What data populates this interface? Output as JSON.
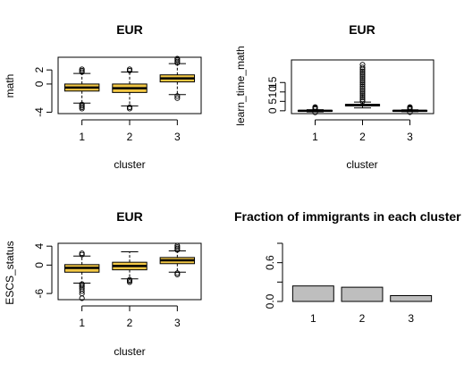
{
  "chart_data": [
    {
      "type": "boxplot",
      "title": "EUR",
      "xlabel": "cluster",
      "ylabel": "math",
      "categories": [
        "1",
        "2",
        "3"
      ],
      "yticks": [
        -4,
        0,
        2
      ],
      "ylim": [
        -4.2,
        3.8
      ],
      "box_color": "#F2C744",
      "boxes": [
        {
          "whisker_low": -2.7,
          "q1": -1.0,
          "median": -0.5,
          "q3": 0.0,
          "whisker_high": 1.5,
          "outliers": [
            -2.9,
            -3.1,
            -3.3,
            -3.5,
            1.7,
            1.9,
            2.1
          ]
        },
        {
          "whisker_low": -3.1,
          "q1": -1.2,
          "median": -0.6,
          "q3": 0.0,
          "whisker_high": 1.7,
          "outliers": [
            -3.3,
            -3.5,
            1.9,
            2.1
          ]
        },
        {
          "whisker_low": -1.5,
          "q1": 0.3,
          "median": 0.8,
          "q3": 1.3,
          "whisker_high": 2.9,
          "outliers": [
            -1.7,
            -2.0,
            3.0,
            3.2,
            3.4,
            3.6
          ]
        }
      ]
    },
    {
      "type": "boxplot",
      "title": "EUR",
      "xlabel": "cluster",
      "ylabel": "learn_time_math",
      "categories": [
        "1",
        "2",
        "3"
      ],
      "yticks": [
        0,
        5,
        10,
        15
      ],
      "ylim": [
        -1.5,
        27
      ],
      "box_color": "#F2C744",
      "boxes": [
        {
          "whisker_low": -0.6,
          "q1": -0.2,
          "median": 0.0,
          "q3": 0.2,
          "whisker_high": 0.6,
          "outliers": [
            -0.9,
            0.9,
            1.3,
            1.7,
            2.0
          ]
        },
        {
          "whisker_low": 1.5,
          "q1": 2.6,
          "median": 3.0,
          "q3": 3.4,
          "whisker_high": 4.6,
          "outliers": [
            5,
            6,
            7,
            8,
            9,
            10,
            11,
            12,
            13,
            14,
            15,
            16,
            17,
            18,
            19,
            20,
            21,
            22,
            23,
            24.5
          ]
        },
        {
          "whisker_low": -0.5,
          "q1": -0.2,
          "median": 0.0,
          "q3": 0.2,
          "whisker_high": 0.5,
          "outliers": [
            -0.8,
            0.8,
            1.2,
            1.6,
            2.0
          ]
        }
      ]
    },
    {
      "type": "boxplot",
      "title": "EUR",
      "xlabel": "cluster",
      "ylabel": "ESCS_status",
      "categories": [
        "1",
        "2",
        "3"
      ],
      "yticks": [
        -6,
        0,
        4
      ],
      "ylim": [
        -7.3,
        4.6
      ],
      "box_color": "#F2C744",
      "boxes": [
        {
          "whisker_low": -3.8,
          "q1": -1.5,
          "median": -0.6,
          "q3": 0.1,
          "whisker_high": 1.9,
          "outliers": [
            -4.0,
            -4.3,
            -4.6,
            -5.0,
            -5.5,
            -6.0,
            -7.0,
            2.2,
            2.5
          ]
        },
        {
          "whisker_low": -2.9,
          "q1": -1.0,
          "median": -0.2,
          "q3": 0.6,
          "whisker_high": 2.8,
          "outliers": [
            -3.1,
            -3.3,
            -3.6
          ]
        },
        {
          "whisker_low": -1.5,
          "q1": 0.3,
          "median": 1.0,
          "q3": 1.6,
          "whisker_high": 3.0,
          "outliers": [
            -1.7,
            -2.0,
            3.2,
            3.5,
            3.8,
            4.1
          ]
        }
      ]
    },
    {
      "type": "bar",
      "title": "Fraction of immigrants in each cluster",
      "categories": [
        "1",
        "2",
        "3"
      ],
      "values": [
        0.24,
        0.22,
        0.09
      ],
      "yticks": [
        0.0,
        0.6
      ],
      "ytick_labels": [
        "0.0",
        "0.6"
      ],
      "ylim": [
        0,
        0.9
      ],
      "bar_color": "#BEBEBE"
    }
  ]
}
